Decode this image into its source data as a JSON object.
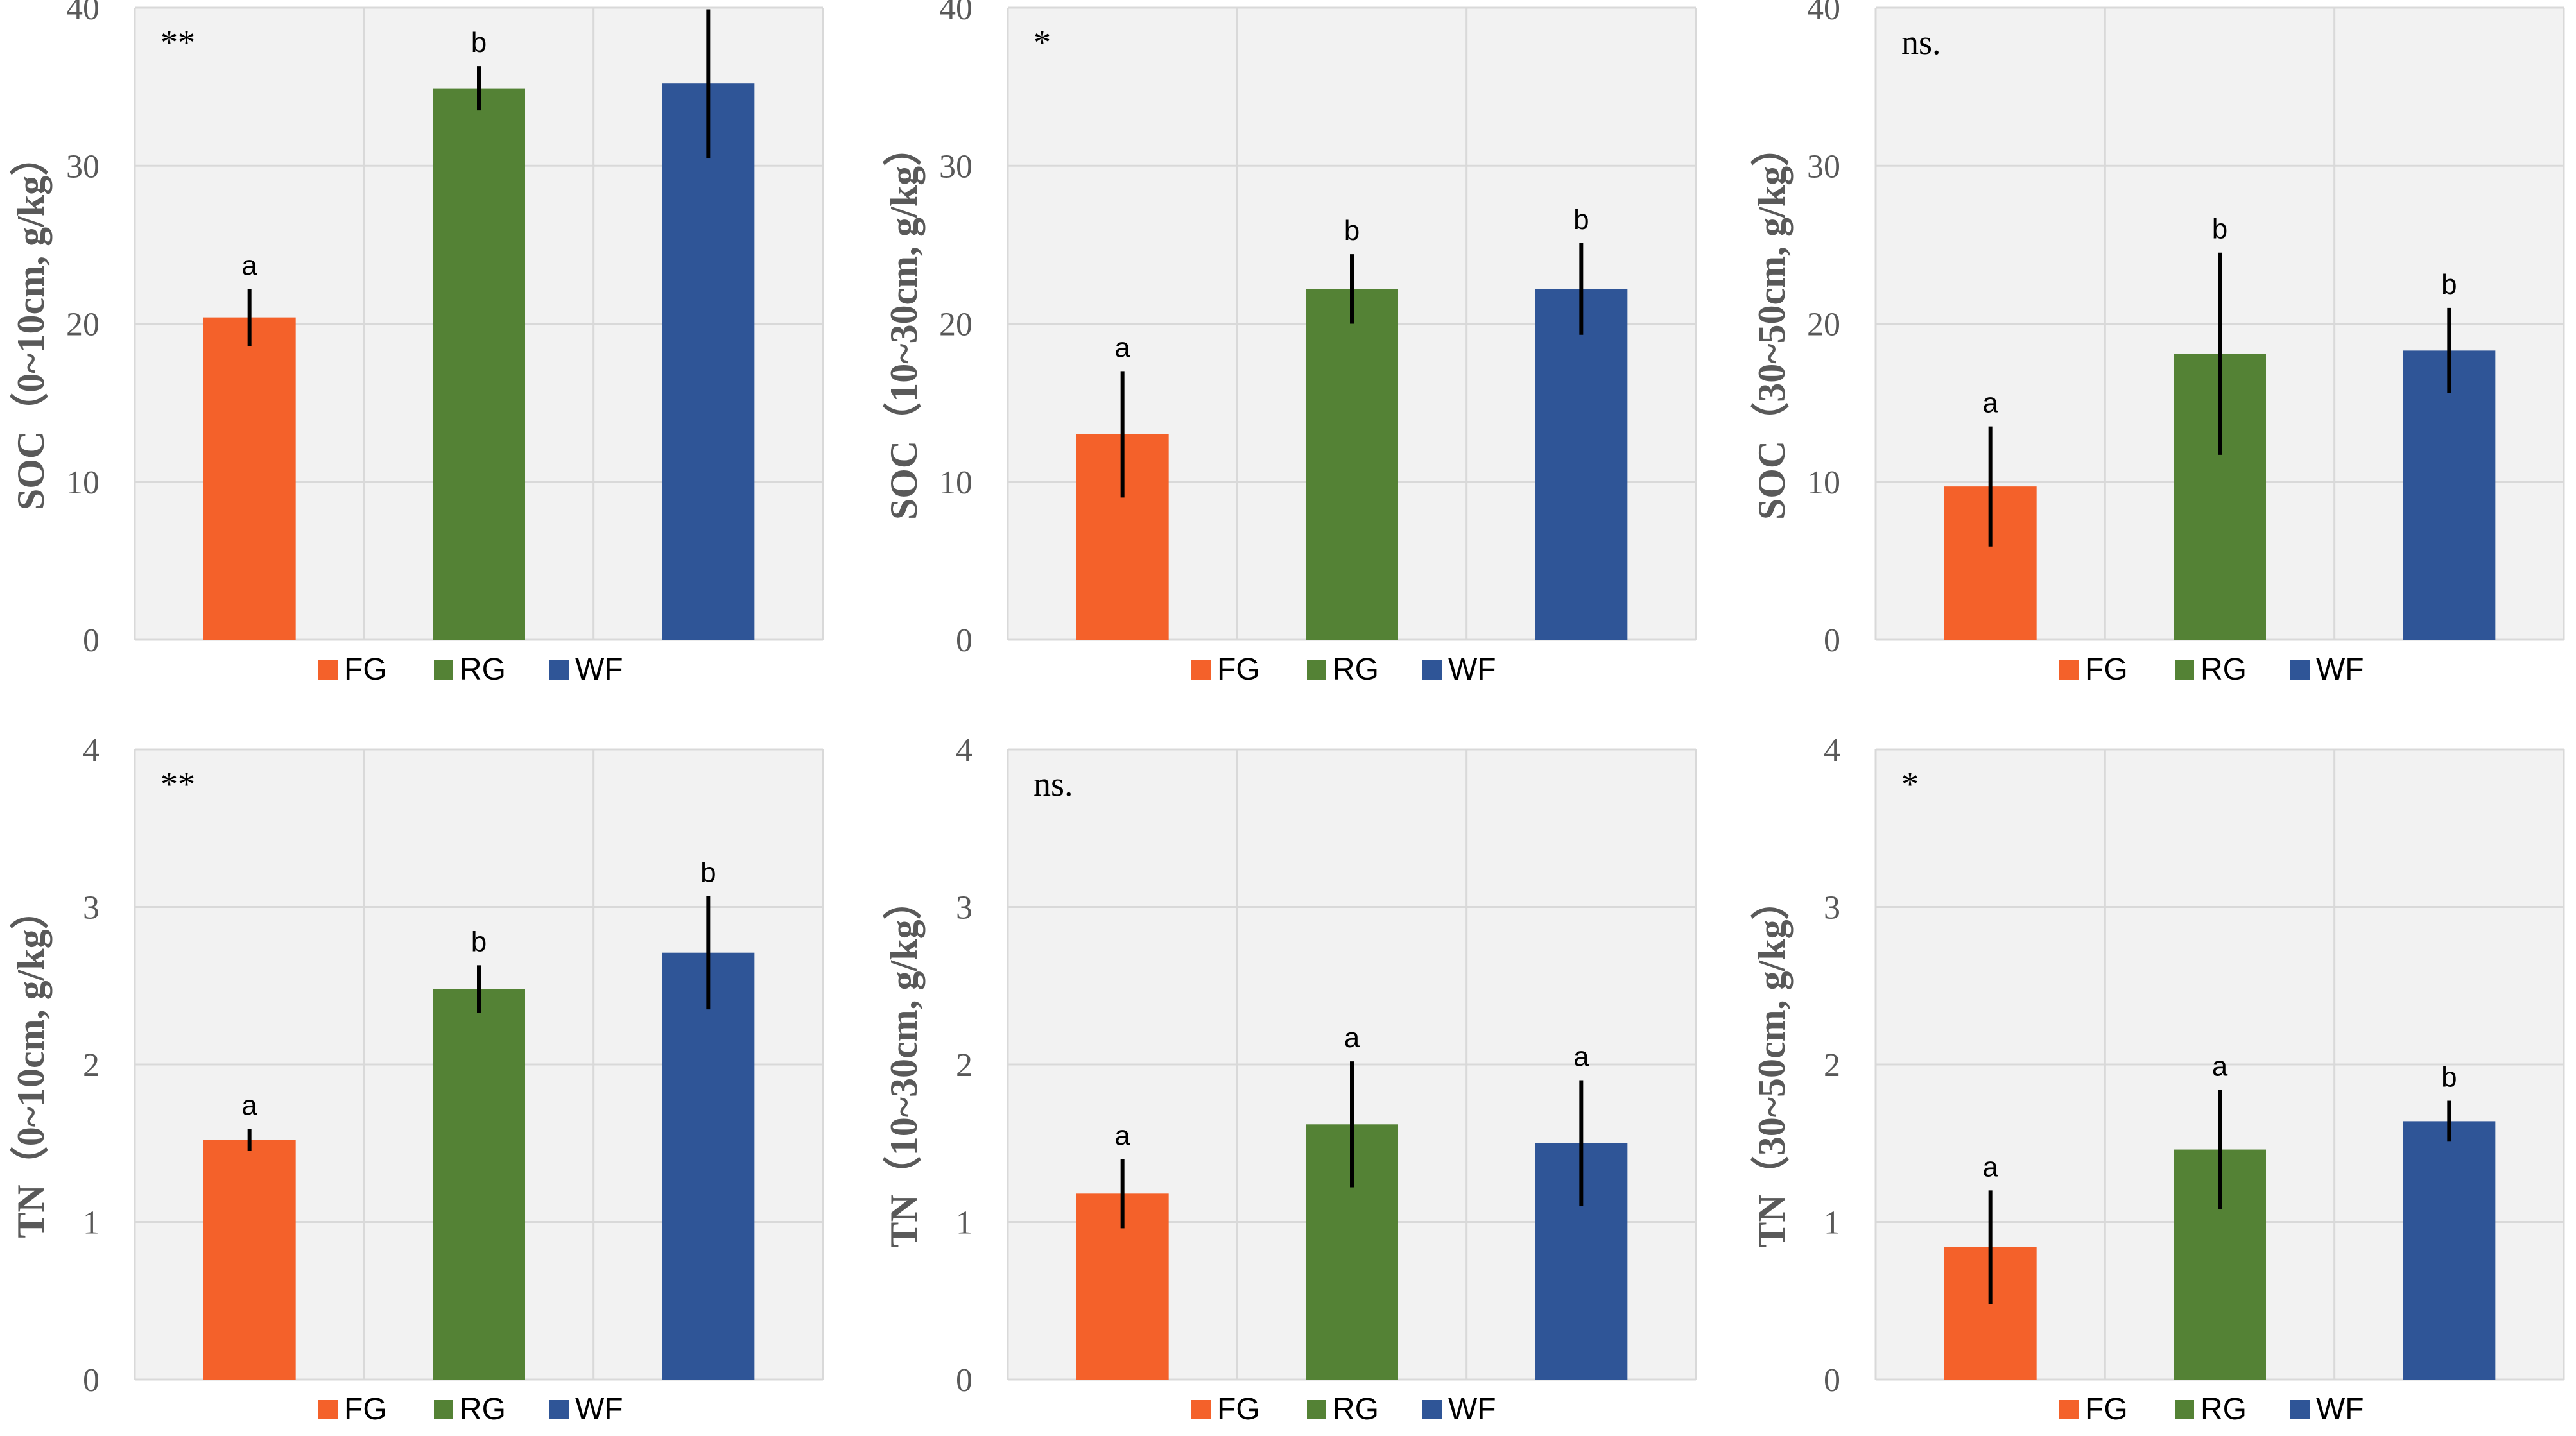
{
  "chart_data": [
    {
      "type": "bar",
      "ylabel": "SOC（0~10cm, g/kg）",
      "significance": "**",
      "categories": [
        "FG",
        "RG",
        "WF"
      ],
      "values": [
        20.4,
        34.9,
        35.2
      ],
      "errors": [
        1.8,
        1.4,
        4.7
      ],
      "letters": [
        "a",
        "b",
        "b"
      ],
      "ylim": [
        0,
        40
      ],
      "yticks": [
        "0",
        "10",
        "20",
        "30",
        "40"
      ]
    },
    {
      "type": "bar",
      "ylabel": "SOC（10~30cm, g/kg）",
      "significance": "*",
      "categories": [
        "FG",
        "RG",
        "WF"
      ],
      "values": [
        13.0,
        22.2,
        22.2
      ],
      "errors": [
        4.0,
        2.2,
        2.9
      ],
      "letters": [
        "a",
        "b",
        "b"
      ],
      "ylim": [
        0,
        40
      ],
      "yticks": [
        "0",
        "10",
        "20",
        "30",
        "40"
      ]
    },
    {
      "type": "bar",
      "ylabel": "SOC（30~50cm, g/kg）",
      "significance": "ns.",
      "categories": [
        "FG",
        "RG",
        "WF"
      ],
      "values": [
        9.7,
        18.1,
        18.3
      ],
      "errors": [
        3.8,
        6.4,
        2.7
      ],
      "letters": [
        "a",
        "b",
        "b"
      ],
      "ylim": [
        0,
        40
      ],
      "yticks": [
        "0",
        "10",
        "20",
        "30",
        "40"
      ]
    },
    {
      "type": "bar",
      "ylabel": "TN（0~10cm, g/kg）",
      "significance": "**",
      "categories": [
        "FG",
        "RG",
        "WF"
      ],
      "values": [
        1.52,
        2.48,
        2.71
      ],
      "errors": [
        0.07,
        0.15,
        0.36
      ],
      "letters": [
        "a",
        "b",
        "b"
      ],
      "ylim": [
        0,
        4
      ],
      "yticks": [
        "0",
        "1",
        "2",
        "3",
        "4"
      ]
    },
    {
      "type": "bar",
      "ylabel": "TN（10~30cm, g/kg）",
      "significance": "ns.",
      "categories": [
        "FG",
        "RG",
        "WF"
      ],
      "values": [
        1.18,
        1.62,
        1.5
      ],
      "errors": [
        0.22,
        0.4,
        0.4
      ],
      "letters": [
        "a",
        "a",
        "a"
      ],
      "ylim": [
        0,
        4
      ],
      "yticks": [
        "0",
        "1",
        "2",
        "3",
        "4"
      ]
    },
    {
      "type": "bar",
      "ylabel": "TN（30~50cm, g/kg）",
      "significance": "*",
      "categories": [
        "FG",
        "RG",
        "WF"
      ],
      "values": [
        0.84,
        1.46,
        1.64
      ],
      "errors": [
        0.36,
        0.38,
        0.13
      ],
      "letters": [
        "a",
        "a",
        "b"
      ],
      "ylim": [
        0,
        4
      ],
      "yticks": [
        "0",
        "1",
        "2",
        "3",
        "4"
      ]
    }
  ],
  "legend": [
    {
      "label": "FG",
      "color": "#F4612A"
    },
    {
      "label": "RG",
      "color": "#548235"
    },
    {
      "label": "WF",
      "color": "#2F5597"
    }
  ],
  "colors": {
    "plot_bg": "#F2F2F2",
    "grid": "#D9D9D9",
    "error_bar": "#000000"
  }
}
